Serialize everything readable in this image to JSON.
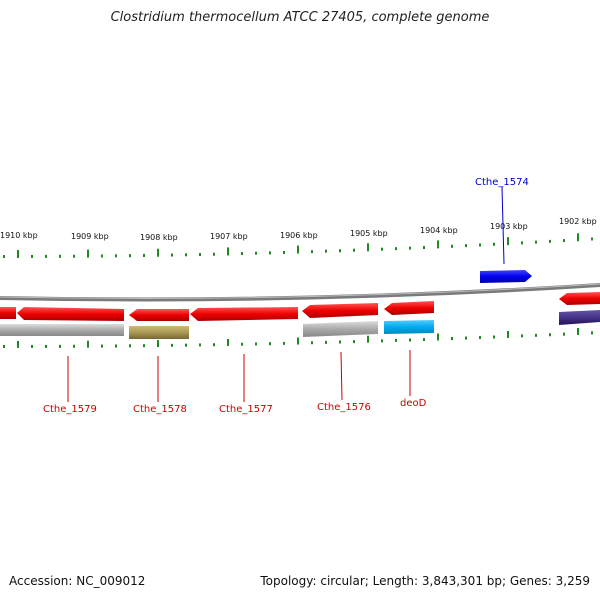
{
  "title": "Clostridium thermocellum ATCC 27405, complete genome",
  "footer": {
    "accession": "Accession: NC_009012",
    "summary": "Topology: circular; Length: 3,843,301 bp; Genes: 3,259"
  },
  "scale_ticks": [
    "1910 kbp",
    "1909 kbp",
    "1908 kbp",
    "1907 kbp",
    "1906 kbp",
    "1905 kbp",
    "1904 kbp",
    "1903 kbp",
    "1902 kbp"
  ],
  "gene_labels": [
    {
      "text": "Cthe_1574",
      "color": "#0000cc"
    },
    {
      "text": "Cthe_1579",
      "color": "#cc0000"
    },
    {
      "text": "Cthe_1578",
      "color": "#cc0000"
    },
    {
      "text": "Cthe_1577",
      "color": "#cc0000"
    },
    {
      "text": "Cthe_1576",
      "color": "#cc0000"
    },
    {
      "text": "deoD",
      "color": "#cc0000"
    }
  ],
  "colors": {
    "gene_red": "#ee0000",
    "gene_blue": "#0000ee",
    "cog_gray": "#aaaaaa",
    "cog_olive": "#aa9955",
    "cog_cyan": "#00aaee",
    "cog_navy": "#443388",
    "tick_green": "#228822",
    "backbone": "#888888"
  }
}
